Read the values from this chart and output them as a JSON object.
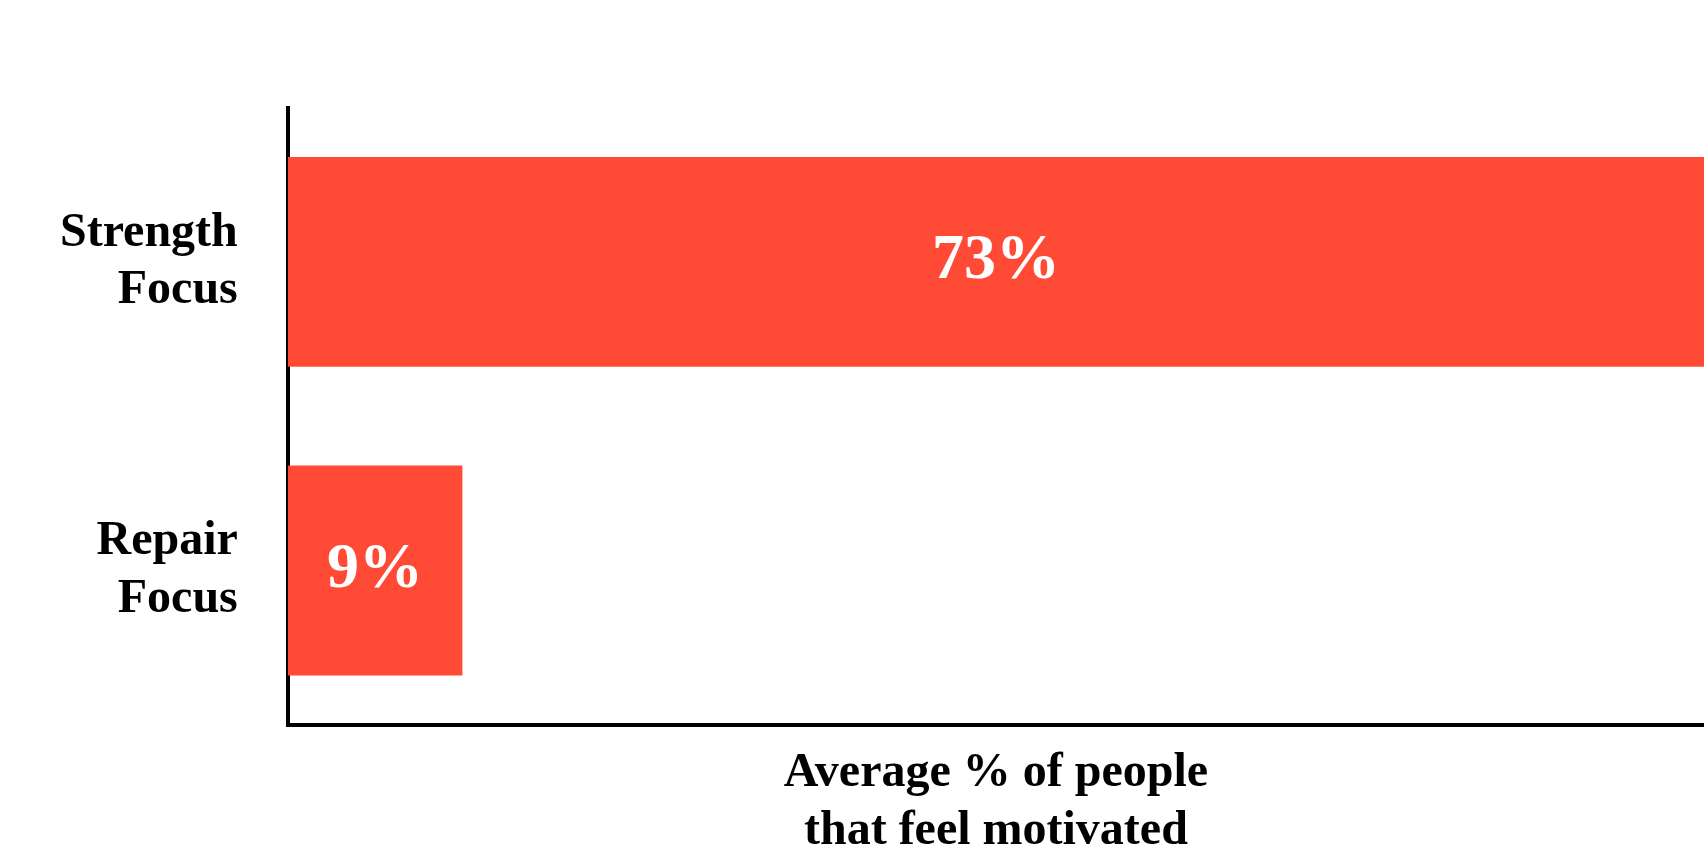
{
  "chart_data": {
    "type": "bar",
    "orientation": "horizontal",
    "xlabel": "Average % of people that feel motivated",
    "categories": [
      "Strength Focus",
      "Repair Focus"
    ],
    "values": [
      73,
      9
    ],
    "value_labels": [
      "73%",
      "9%"
    ],
    "color": "#ff4a36",
    "grid": false,
    "legend": false,
    "tick_labels": false
  }
}
